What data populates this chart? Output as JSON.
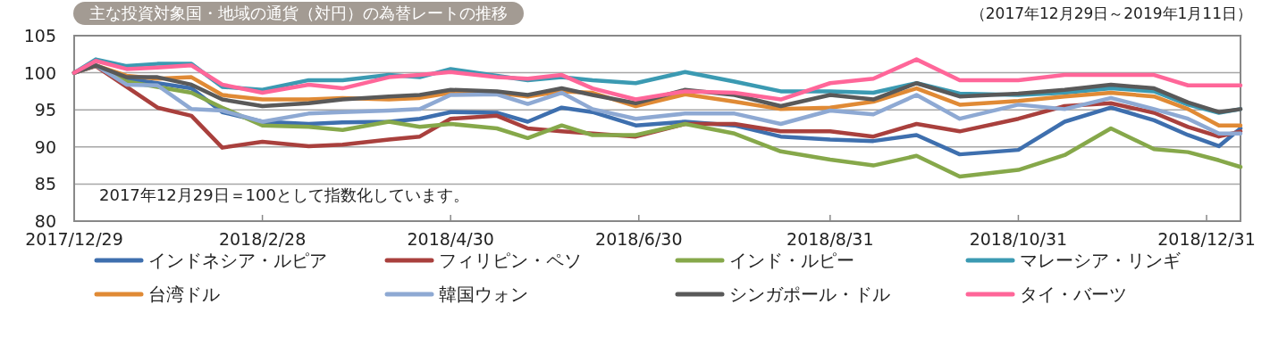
{
  "chart_data": {
    "type": "line",
    "title": "主な投資対象国・地域の通貨（対円）の為替レートの推移",
    "subtitle": "（2017年12月29日～2019年1月11日）",
    "annotations": [
      "2017年12月29日＝100として指数化しています。"
    ],
    "x": [
      "2017-12-29",
      "2018-01-05",
      "2018-01-15",
      "2018-01-25",
      "2018-02-05",
      "2018-02-15",
      "2018-02-28",
      "2018-03-15",
      "2018-03-26",
      "2018-04-10",
      "2018-04-20",
      "2018-04-30",
      "2018-05-15",
      "2018-05-25",
      "2018-06-05",
      "2018-06-15",
      "2018-06-29",
      "2018-07-15",
      "2018-07-31",
      "2018-08-15",
      "2018-08-31",
      "2018-09-14",
      "2018-09-28",
      "2018-10-12",
      "2018-10-31",
      "2018-11-15",
      "2018-11-30",
      "2018-12-14",
      "2018-12-25",
      "2019-01-04",
      "2019-01-11"
    ],
    "series": [
      {
        "name": "インドネシア・ルピア",
        "color": "#3e6fae",
        "values": [
          100,
          101.0,
          99.2,
          98.6,
          97.9,
          94.7,
          93.4,
          93.1,
          93.3,
          93.4,
          93.8,
          94.7,
          94.6,
          93.4,
          95.3,
          94.7,
          92.9,
          93.4,
          92.9,
          91.4,
          91.0,
          90.8,
          91.6,
          89.0,
          89.6,
          93.4,
          95.3,
          93.6,
          91.6,
          90.1,
          92.5
        ]
      },
      {
        "name": "フィリピン・ペソ",
        "color": "#a9403d",
        "values": [
          100,
          100.9,
          98.1,
          95.3,
          94.2,
          89.9,
          90.7,
          90.1,
          90.3,
          91.0,
          91.4,
          93.8,
          94.2,
          92.5,
          92.1,
          91.8,
          91.4,
          93.1,
          93.1,
          92.1,
          92.1,
          91.4,
          93.1,
          92.1,
          93.8,
          95.5,
          95.9,
          94.6,
          92.7,
          91.4,
          92.1
        ]
      },
      {
        "name": "インド・ルピー",
        "color": "#86a84a",
        "values": [
          100,
          101.0,
          98.8,
          98.1,
          97.3,
          95.3,
          92.9,
          92.7,
          92.3,
          93.4,
          92.7,
          93.1,
          92.5,
          91.2,
          92.9,
          91.6,
          91.6,
          93.1,
          91.8,
          89.4,
          88.3,
          87.5,
          88.8,
          86.0,
          86.9,
          88.9,
          92.5,
          89.7,
          89.3,
          88.2,
          87.3
        ]
      },
      {
        "name": "マレーシア・リンギ",
        "color": "#3b9ab2",
        "values": [
          100,
          101.8,
          100.9,
          101.2,
          101.2,
          98.1,
          97.7,
          99.0,
          99.0,
          99.7,
          99.4,
          100.5,
          99.6,
          99.0,
          99.4,
          99.0,
          98.6,
          100.1,
          98.8,
          97.5,
          97.5,
          97.3,
          98.6,
          97.2,
          97.0,
          97.3,
          97.9,
          97.5,
          95.7,
          94.6,
          95.1
        ]
      },
      {
        "name": "台湾ドル",
        "color": "#e08a35",
        "values": [
          100,
          101.0,
          99.6,
          99.2,
          99.4,
          97.0,
          96.4,
          96.4,
          96.6,
          96.4,
          96.6,
          97.3,
          97.3,
          96.8,
          97.5,
          97.3,
          95.5,
          97.1,
          96.1,
          95.1,
          95.3,
          96.1,
          97.9,
          95.7,
          96.2,
          96.8,
          97.3,
          96.8,
          95.1,
          92.9,
          92.9
        ]
      },
      {
        "name": "韓国ウォン",
        "color": "#8ea9d3",
        "values": [
          100,
          101.0,
          98.4,
          98.3,
          95.1,
          94.9,
          93.4,
          94.5,
          94.7,
          94.9,
          95.1,
          97.0,
          97.1,
          95.8,
          97.3,
          95.1,
          93.8,
          94.5,
          94.5,
          93.1,
          94.9,
          94.4,
          97.0,
          93.8,
          95.7,
          95.1,
          96.6,
          95.1,
          93.8,
          91.8,
          91.8
        ]
      },
      {
        "name": "シンガポール・ドル",
        "color": "#595959",
        "values": [
          100,
          101.0,
          99.4,
          99.4,
          98.4,
          96.4,
          95.5,
          95.9,
          96.4,
          96.8,
          97.0,
          97.7,
          97.5,
          97.0,
          97.9,
          97.0,
          95.9,
          97.7,
          97.0,
          95.5,
          97.0,
          96.4,
          98.6,
          96.8,
          97.2,
          97.7,
          98.4,
          97.9,
          96.0,
          94.7,
          95.1
        ]
      },
      {
        "name": "タイ・バーツ",
        "color": "#ff6699",
        "values": [
          100,
          101.6,
          100.5,
          100.7,
          101.0,
          98.4,
          97.3,
          98.4,
          97.9,
          99.4,
          99.7,
          100.1,
          99.4,
          99.2,
          99.7,
          97.9,
          96.4,
          97.5,
          97.3,
          96.4,
          98.6,
          99.2,
          101.8,
          99.0,
          99.0,
          99.7,
          99.7,
          99.7,
          98.3,
          98.3,
          98.3
        ]
      }
    ],
    "xlim": [
      "2017-12-29",
      "2019-01-11"
    ],
    "xticks": [
      {
        "value": "2017-12-29",
        "label": "2017/12/29"
      },
      {
        "value": "2018-02-28",
        "label": "2018/2/28"
      },
      {
        "value": "2018-04-30",
        "label": "2018/4/30"
      },
      {
        "value": "2018-06-30",
        "label": "2018/6/30"
      },
      {
        "value": "2018-08-31",
        "label": "2018/8/31"
      },
      {
        "value": "2018-10-31",
        "label": "2018/10/31"
      },
      {
        "value": "2018-12-31",
        "label": "2018/12/31"
      }
    ],
    "ylim": [
      80,
      105
    ],
    "yticks": [
      80,
      85,
      90,
      95,
      100,
      105
    ],
    "grid": "y",
    "legend": "bottom",
    "marker": "none",
    "line_style": "solid"
  }
}
